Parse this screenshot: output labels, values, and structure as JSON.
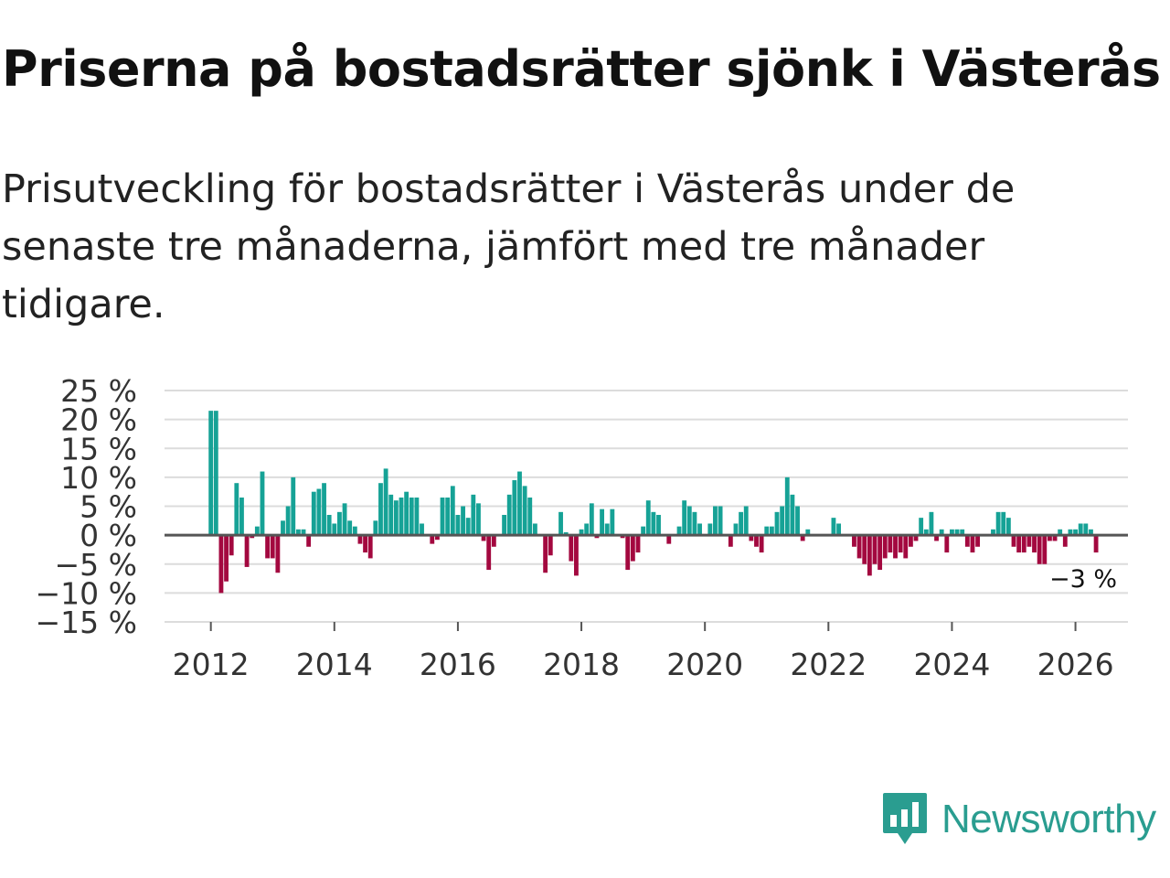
{
  "title": "Priserna på bostadsrätter sjönk i Västerås",
  "subtitle": "Prisutveckling för bostadsrätter i Västerås under de senaste tre månaderna, jämfört med tre månader tidigare.",
  "brand": {
    "name": "Newsworthy",
    "color": "#2a9d90"
  },
  "colors": {
    "positive": "#16a296",
    "negative": "#a3083f",
    "zero_line": "#555555",
    "grid": "#dcdcdc"
  },
  "chart_data": {
    "type": "bar",
    "title": "Priserna på bostadsrätter sjönk i Västerås",
    "xlabel": "",
    "ylabel": "",
    "ylim": [
      -15,
      25
    ],
    "xlim": [
      2011.25,
      2026.85
    ],
    "y_ticks": [
      25,
      20,
      15,
      10,
      5,
      0,
      -5,
      -10,
      -15
    ],
    "y_tick_labels": [
      "25 %",
      "20 %",
      "15 %",
      "10 %",
      "5 %",
      "0 %",
      "−5 %",
      "−10 %",
      "−15 %"
    ],
    "x_ticks": [
      2012,
      2014,
      2016,
      2018,
      2020,
      2022,
      2024,
      2026
    ],
    "x_tick_labels": [
      "2012",
      "2014",
      "2016",
      "2018",
      "2020",
      "2022",
      "2024",
      "2026"
    ],
    "start": "2012-01",
    "frequency": "monthly",
    "values": [
      21.5,
      21.5,
      -10,
      -8,
      -3.5,
      9,
      6.5,
      -5.5,
      -0.5,
      1.5,
      11,
      -4,
      -4,
      -6.5,
      2.5,
      5,
      10,
      1,
      1,
      -2,
      7.5,
      8,
      9,
      3.5,
      2,
      4,
      5.5,
      2.5,
      1.5,
      -1.5,
      -3,
      -4,
      2.5,
      9,
      11.5,
      7,
      6,
      6.5,
      7.5,
      6.5,
      6.5,
      2,
      0,
      -1.5,
      -0.8,
      6.5,
      6.5,
      8.5,
      3.5,
      5,
      3,
      7,
      5.5,
      -1,
      -6,
      -2,
      0,
      3.5,
      7,
      9.5,
      11,
      8.5,
      6.5,
      2,
      0,
      -6.5,
      -3.5,
      0,
      4,
      0.5,
      -4.5,
      -7,
      1,
      2,
      5.5,
      -0.5,
      4.5,
      2,
      4.5,
      0,
      -0.5,
      -6,
      -4.5,
      -3,
      1.5,
      6,
      4,
      3.5,
      0,
      -1.5,
      0,
      1.5,
      6,
      5,
      4,
      2,
      0,
      2,
      5,
      5,
      0,
      -2,
      2,
      4,
      5,
      -1,
      -2,
      -3,
      1.5,
      1.5,
      4,
      5,
      10,
      7,
      5,
      -1,
      1,
      0,
      0,
      0,
      0,
      3,
      2,
      0,
      0,
      -2,
      -4,
      -5,
      -7,
      -5,
      -6,
      -4,
      -3,
      -4,
      -3,
      -4,
      -2,
      -1,
      3,
      1,
      4,
      -1,
      1,
      -3,
      1,
      1,
      1,
      -2,
      -3,
      -2,
      0,
      0,
      1,
      4,
      4,
      3,
      -2,
      -3,
      -3,
      -2,
      -3,
      -5,
      -5,
      -1,
      -1,
      1,
      -2,
      1,
      1,
      2,
      2,
      1,
      -3
    ],
    "annotation": {
      "text": "−3 %",
      "target": "last"
    }
  }
}
